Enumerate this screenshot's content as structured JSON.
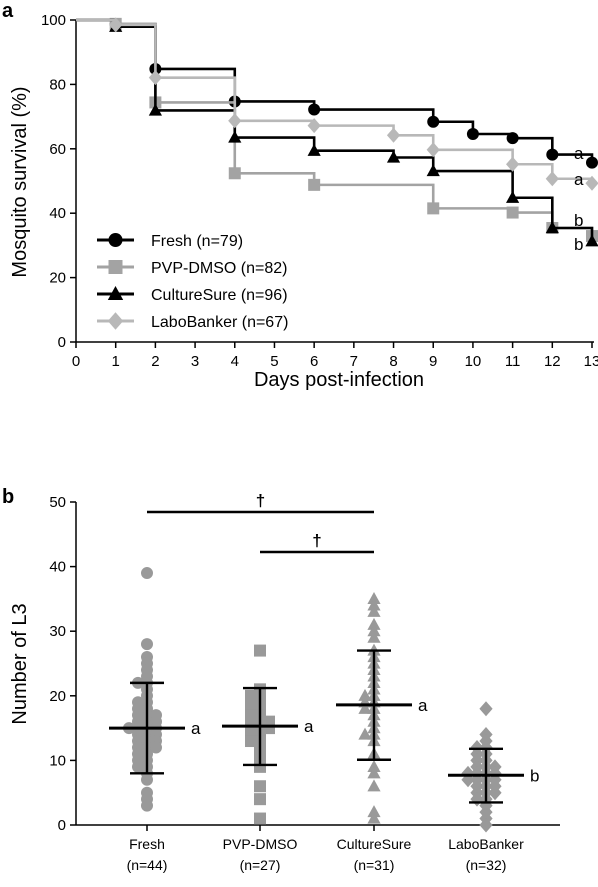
{
  "chart_data": [
    {
      "panel_label": "a",
      "type": "line",
      "subtype": "step",
      "xlabel": "Days post-infection",
      "ylabel": "Mosquito survival (%)",
      "xlim": [
        0,
        13
      ],
      "ylim": [
        0,
        100
      ],
      "xticks": [
        0,
        1,
        2,
        3,
        4,
        5,
        6,
        7,
        8,
        9,
        10,
        11,
        12,
        13
      ],
      "yticks": [
        0,
        20,
        40,
        60,
        80,
        100
      ],
      "grid": false,
      "legend_position": "bottom-left",
      "colors": {
        "black": "#000000",
        "gray": "#a3a3a3",
        "light": "#b8b8b8"
      },
      "series": [
        {
          "name": "Fresh (n=79)",
          "marker": "circle",
          "color": "#000000",
          "x": [
            0,
            1,
            2,
            4,
            6,
            9,
            10,
            11,
            12,
            13
          ],
          "y": [
            100,
            98.7,
            84.8,
            74.7,
            72.2,
            68.4,
            64.6,
            63.3,
            58.2,
            55.7
          ],
          "significance": "a"
        },
        {
          "name": "PVP-DMSO (n=82)",
          "marker": "square",
          "color": "#a3a3a3",
          "x": [
            0,
            1,
            2,
            4,
            6,
            9,
            11,
            12,
            13
          ],
          "y": [
            100,
            98.8,
            74.4,
            52.4,
            48.8,
            41.5,
            40.2,
            35.4,
            32.9
          ],
          "significance": "b"
        },
        {
          "name": "CultureSure (n=96)",
          "marker": "triangle",
          "color": "#000000",
          "x": [
            0,
            1,
            2,
            4,
            6,
            8,
            9,
            11,
            12,
            13
          ],
          "y": [
            100,
            97.9,
            71.9,
            63.5,
            59.4,
            57.3,
            53.1,
            44.8,
            35.4,
            31.3
          ],
          "significance": "b"
        },
        {
          "name": "LaboBanker (n=67)",
          "marker": "diamond",
          "color": "#b8b8b8",
          "x": [
            0,
            1,
            2,
            4,
            6,
            8,
            9,
            11,
            12,
            13
          ],
          "y": [
            100,
            98.5,
            82.1,
            68.7,
            67.2,
            64.2,
            59.7,
            55.2,
            50.7,
            49.3
          ],
          "significance": "a"
        }
      ],
      "annotation_order": [
        "a",
        "a",
        "b",
        "b"
      ]
    },
    {
      "panel_label": "b",
      "type": "scatter",
      "subtype": "dot-plot-mean-sd",
      "ylabel": "Number of L3",
      "ylim": [
        0,
        50
      ],
      "yticks": [
        0,
        10,
        20,
        30,
        40,
        50
      ],
      "grid": false,
      "categories": [
        "Fresh",
        "PVP-DMSO",
        "CultureSure",
        "LaboBanker"
      ],
      "category_n": [
        "(n=44)",
        "(n=27)",
        "(n=31)",
        "(n=32)"
      ],
      "series": [
        {
          "category": "Fresh",
          "marker": "circle",
          "color": "#999999",
          "mean": 15.0,
          "sd_low": 8.0,
          "sd_high": 22.0,
          "significance": "a",
          "values": [
            39,
            28,
            26,
            25,
            24,
            23,
            22,
            22,
            21,
            20,
            19,
            19,
            18,
            18,
            17,
            17,
            17,
            16,
            16,
            16,
            15,
            15,
            15,
            15,
            14,
            14,
            14,
            13,
            13,
            13,
            12,
            12,
            12,
            11,
            11,
            10,
            10,
            9,
            9,
            8,
            7,
            5,
            4,
            3
          ]
        },
        {
          "category": "PVP-DMSO",
          "marker": "square",
          "color": "#999999",
          "mean": 15.3,
          "sd_low": 9.3,
          "sd_high": 21.2,
          "significance": "a",
          "values": [
            27,
            21,
            20,
            20,
            19,
            19,
            18,
            18,
            17,
            17,
            16,
            16,
            16,
            15,
            15,
            15,
            14,
            14,
            13,
            13,
            12,
            11,
            10,
            9,
            6,
            4,
            1
          ]
        },
        {
          "category": "CultureSure",
          "marker": "triangle",
          "color": "#999999",
          "mean": 18.6,
          "sd_low": 10.1,
          "sd_high": 27.0,
          "significance": "a",
          "values": [
            35,
            34,
            33,
            31,
            30,
            29,
            27,
            26,
            25,
            24,
            23,
            22,
            21,
            20,
            20,
            19,
            19,
            18,
            18,
            17,
            16,
            15,
            14,
            14,
            13,
            11,
            9,
            8,
            6,
            2,
            1
          ]
        },
        {
          "category": "LaboBanker",
          "marker": "diamond",
          "color": "#999999",
          "mean": 7.7,
          "sd_low": 3.5,
          "sd_high": 11.8,
          "significance": "b",
          "values": [
            18,
            14,
            13,
            12,
            12,
            11,
            11,
            10,
            10,
            9,
            9,
            9,
            8,
            8,
            8,
            8,
            7,
            7,
            7,
            7,
            6,
            6,
            6,
            5,
            5,
            5,
            4,
            4,
            3,
            2,
            1,
            0
          ]
        }
      ],
      "comparisons": [
        {
          "from": "Fresh",
          "to": "CultureSure",
          "symbol": "†"
        },
        {
          "from": "PVP-DMSO",
          "to": "CultureSure",
          "symbol": "†"
        }
      ]
    }
  ]
}
